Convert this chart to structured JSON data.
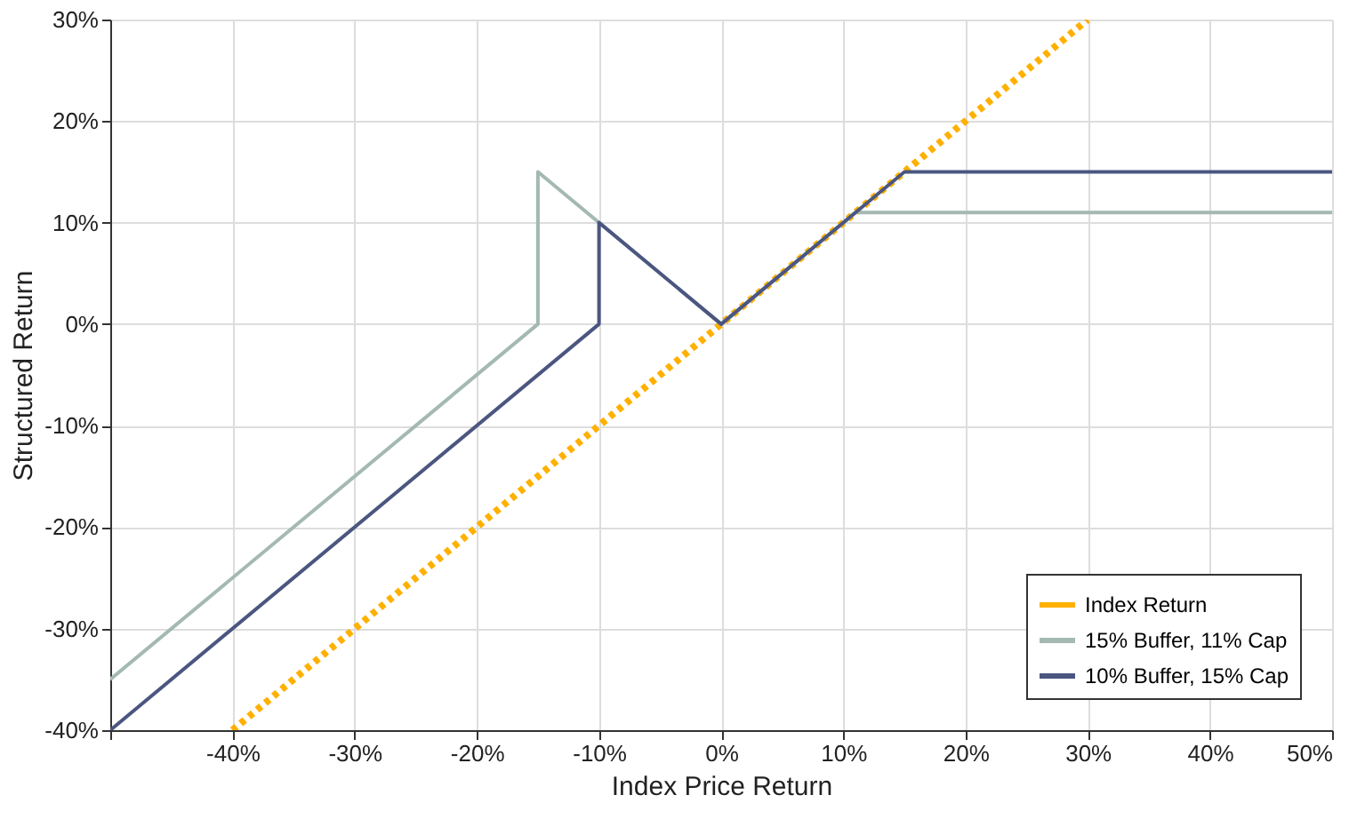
{
  "chart_data": {
    "type": "line",
    "xlabel": "Index Price Return",
    "ylabel": "Structured Return",
    "xlim": [
      -50,
      50
    ],
    "ylim": [
      -40,
      30
    ],
    "xticks": [
      {
        "value": -50,
        "label": null
      },
      {
        "value": -40,
        "label": "-40%"
      },
      {
        "value": -30,
        "label": "-30%"
      },
      {
        "value": -20,
        "label": "-20%"
      },
      {
        "value": -10,
        "label": "-10%"
      },
      {
        "value": 0,
        "label": "0%"
      },
      {
        "value": 10,
        "label": "10%"
      },
      {
        "value": 20,
        "label": "20%"
      },
      {
        "value": 30,
        "label": "30%"
      },
      {
        "value": 40,
        "label": "40%"
      },
      {
        "value": 50,
        "label": "50%"
      }
    ],
    "yticks": [
      {
        "value": -40,
        "label": "-40%"
      },
      {
        "value": -30,
        "label": "-30%"
      },
      {
        "value": -20,
        "label": "-20%"
      },
      {
        "value": -10,
        "label": "-10%"
      },
      {
        "value": 0,
        "label": "0%"
      },
      {
        "value": 10,
        "label": "10%"
      },
      {
        "value": 20,
        "label": "20%"
      },
      {
        "value": 30,
        "label": "30%"
      }
    ],
    "grid": true,
    "legend": "bottom right",
    "marker": "none",
    "series": [
      {
        "name": "Index Return",
        "color": "#ffb000",
        "line_style": "dotted",
        "x": [
          -40,
          30
        ],
        "values": [
          -40,
          30
        ]
      },
      {
        "name": "15% Buffer, 11% Cap",
        "color": "#a3b9b1",
        "line_style": "solid",
        "x": [
          -50,
          -15,
          -15,
          0,
          11,
          50
        ],
        "values": [
          -35,
          0,
          15,
          0,
          11,
          11
        ]
      },
      {
        "name": "10% Buffer, 15% Cap",
        "color": "#4b5680",
        "line_style": "solid",
        "x": [
          -50,
          -10,
          -10,
          0,
          15,
          50
        ],
        "values": [
          -40,
          0,
          10,
          0,
          15,
          15
        ]
      }
    ]
  }
}
